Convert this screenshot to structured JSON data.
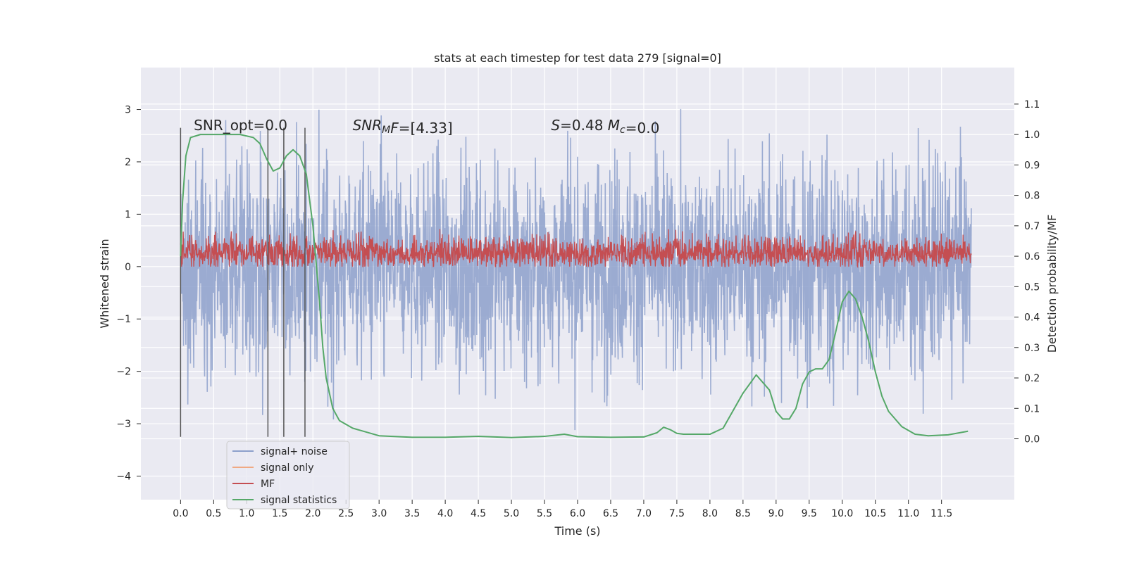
{
  "chart_data": {
    "type": "line",
    "title": "stats at each timestep for test data 279 [signal=0]",
    "xlabel": "Time (s)",
    "ylabel_left": "Whitened strain",
    "ylabel_right": "Detection probability/MF",
    "xlim": [
      -0.6,
      12.6
    ],
    "ylim_left": [
      -4.45,
      3.8
    ],
    "ylim_right": [
      -0.2,
      1.22
    ],
    "x_ticks": [
      0.0,
      0.5,
      1.0,
      1.5,
      2.0,
      2.5,
      3.0,
      3.5,
      4.0,
      4.5,
      5.0,
      5.5,
      6.0,
      6.5,
      7.0,
      7.5,
      8.0,
      8.5,
      9.0,
      9.5,
      10.0,
      10.5,
      11.0,
      11.5
    ],
    "x_tick_labels": [
      "0.0",
      "0.5",
      "1.0",
      "1.5",
      "2.0",
      "2.5",
      "3.0",
      "3.5",
      "4.0",
      "4.5",
      "5.0",
      "5.5",
      "6.0",
      "6.5",
      "7.0",
      "7.5",
      "8.0",
      "8.5",
      "9.0",
      "9.5",
      "10.0",
      "10.5",
      "11.0",
      "11.5"
    ],
    "y_left_ticks": [
      3,
      2,
      1,
      0,
      -1,
      -2,
      -3,
      -4
    ],
    "y_left_tick_labels": [
      "3",
      "2",
      "1",
      "0",
      "−1",
      "−2",
      "−3",
      "−4"
    ],
    "y_right_ticks": [
      1.1,
      1.0,
      0.9,
      0.8,
      0.7,
      0.6,
      0.5,
      0.4,
      0.3,
      0.2,
      0.1,
      0.0
    ],
    "y_right_tick_labels": [
      "1.1",
      "1.0",
      "0.9",
      "0.8",
      "0.7",
      "0.6",
      "0.5",
      "0.4",
      "0.3",
      "0.2",
      "0.1",
      "0.0"
    ],
    "grid": true,
    "legend_position": "lower-left",
    "series": [
      {
        "name": "signal+ noise",
        "color": "#8da0cb",
        "axis": "left",
        "style": "dense noise, approx. range -3.2 to 3.4, mean 0",
        "x_range": [
          0.0,
          11.95
        ]
      },
      {
        "name": "signal only",
        "color": "#f0a983",
        "axis": "left",
        "style": "not visible (zero)"
      },
      {
        "name": "MF",
        "color": "#c44e52",
        "axis": "left",
        "style": "dense noise, approx. range 0 to 0.9, mean 0.25",
        "x_range": [
          0.0,
          11.95
        ]
      },
      {
        "name": "signal statistics",
        "color": "#55a868",
        "axis": "right",
        "x": [
          0.0,
          0.03,
          0.08,
          0.15,
          0.3,
          0.6,
          0.9,
          1.1,
          1.2,
          1.3,
          1.4,
          1.5,
          1.6,
          1.7,
          1.8,
          1.9,
          2.0,
          2.1,
          2.15,
          2.2,
          2.3,
          2.4,
          2.6,
          3.0,
          3.5,
          4.0,
          4.5,
          5.0,
          5.5,
          5.8,
          6.0,
          6.5,
          7.0,
          7.2,
          7.3,
          7.4,
          7.5,
          7.6,
          8.0,
          8.2,
          8.5,
          8.7,
          8.9,
          9.0,
          9.1,
          9.2,
          9.3,
          9.4,
          9.5,
          9.6,
          9.7,
          9.8,
          9.9,
          10.0,
          10.1,
          10.2,
          10.3,
          10.4,
          10.5,
          10.6,
          10.7,
          10.9,
          11.1,
          11.3,
          11.6,
          11.9
        ],
        "values": [
          0.6,
          0.78,
          0.93,
          0.99,
          1.0,
          1.0,
          1.0,
          0.99,
          0.97,
          0.92,
          0.88,
          0.89,
          0.93,
          0.95,
          0.93,
          0.87,
          0.7,
          0.45,
          0.3,
          0.2,
          0.1,
          0.06,
          0.035,
          0.01,
          0.005,
          0.005,
          0.008,
          0.004,
          0.008,
          0.015,
          0.007,
          0.005,
          0.006,
          0.02,
          0.038,
          0.03,
          0.018,
          0.015,
          0.015,
          0.035,
          0.15,
          0.21,
          0.16,
          0.09,
          0.065,
          0.065,
          0.1,
          0.18,
          0.22,
          0.23,
          0.23,
          0.26,
          0.35,
          0.45,
          0.485,
          0.46,
          0.4,
          0.32,
          0.22,
          0.14,
          0.09,
          0.04,
          0.015,
          0.01,
          0.013,
          0.025
        ]
      }
    ],
    "vertical_lines": {
      "color": "#555555",
      "x": [
        0.0,
        1.32,
        1.56,
        1.88
      ],
      "y_range": [
        -3.25,
        2.65
      ]
    },
    "annotations": [
      {
        "parts": [
          {
            "t": "SNR_opt=0.0",
            "it": false
          }
        ],
        "x": 0.2,
        "y": 2.7
      },
      {
        "parts": [
          {
            "t": "SNR",
            "it": true
          },
          {
            "t": "M",
            "it": true,
            "sub": true
          },
          {
            "t": "F",
            "it": true
          },
          {
            "t": "=[4.33]",
            "it": false
          }
        ],
        "x": 2.6,
        "y": 2.7
      },
      {
        "parts": [
          {
            "t": "S",
            "it": true
          },
          {
            "t": "=0.48   ",
            "it": false
          },
          {
            "t": "M",
            "it": true
          },
          {
            "t": "c",
            "it": true,
            "sub": true
          },
          {
            "t": "=0.0",
            "it": false
          }
        ],
        "x": 5.6,
        "y": 2.7
      }
    ]
  }
}
